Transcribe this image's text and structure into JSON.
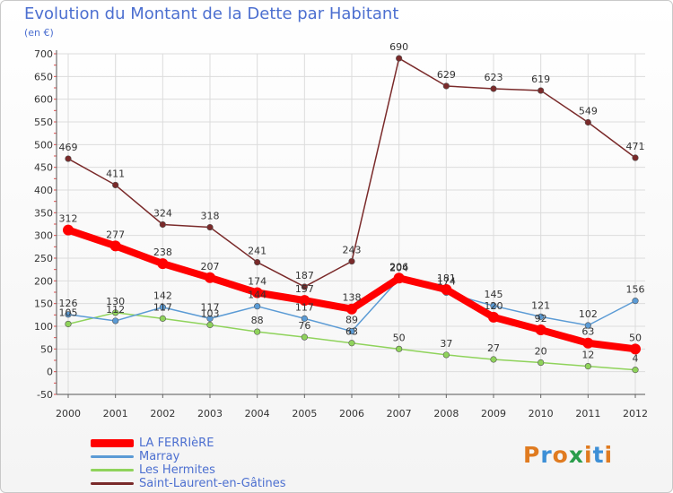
{
  "title": "Evolution du Montant de la Dette par Habitant",
  "subtitle": "(en €)",
  "logo": {
    "text": "Proxiti",
    "colors": [
      "#e07b20",
      "#3d8fd6",
      "#e07b20",
      "#2a9d4b",
      "#e07b20",
      "#3d8fd6",
      "#e07b20"
    ]
  },
  "chart_data": {
    "type": "line",
    "x": [
      "2000",
      "2001",
      "2002",
      "2003",
      "2004",
      "2005",
      "2006",
      "2007",
      "2008",
      "2009",
      "2010",
      "2011",
      "2012"
    ],
    "ylim": [
      -50,
      700
    ],
    "yticks": [
      -50,
      0,
      50,
      100,
      150,
      200,
      250,
      300,
      350,
      400,
      450,
      500,
      550,
      600,
      650,
      700
    ],
    "grid": true,
    "legend_position": "bottom-left",
    "series": [
      {
        "name": "LA FERRIèRE",
        "color": "#ff0000",
        "values": [
          312,
          277,
          238,
          207,
          174,
          157,
          138,
          206,
          181,
          120,
          92,
          63,
          50
        ],
        "labels": [
          "312",
          "277",
          "238",
          "207",
          "174",
          "157",
          "138",
          "206",
          "181",
          "120",
          "92",
          "63",
          "50"
        ]
      },
      {
        "name": "Marray",
        "color": "#5b9bd5",
        "values": [
          126,
          112,
          142,
          117,
          144,
          117,
          89,
          204,
          174,
          145,
          121,
          102,
          156
        ],
        "labels": [
          "126",
          "112",
          "142",
          "117",
          "144",
          "117",
          "89",
          "204",
          "174",
          "145",
          "121",
          "102",
          "156"
        ]
      },
      {
        "name": "Les Hermites",
        "color": "#8fd35b",
        "values": [
          105,
          130,
          117,
          103,
          88,
          76,
          63,
          50,
          37,
          27,
          20,
          12,
          4
        ],
        "labels": [
          "105",
          "130",
          "117",
          "103",
          "88",
          "76",
          "63",
          "50",
          "37",
          "27",
          "20",
          "12",
          "4"
        ]
      },
      {
        "name": "Saint-Laurent-en-Gâtines",
        "color": "#7a2a2a",
        "values": [
          469,
          411,
          324,
          318,
          241,
          187,
          243,
          690,
          629,
          623,
          619,
          549,
          471
        ],
        "labels": [
          "469",
          "411",
          "324",
          "318",
          "241",
          "187",
          "243",
          "690",
          "629",
          "623",
          "619",
          "549",
          "471"
        ]
      }
    ]
  }
}
